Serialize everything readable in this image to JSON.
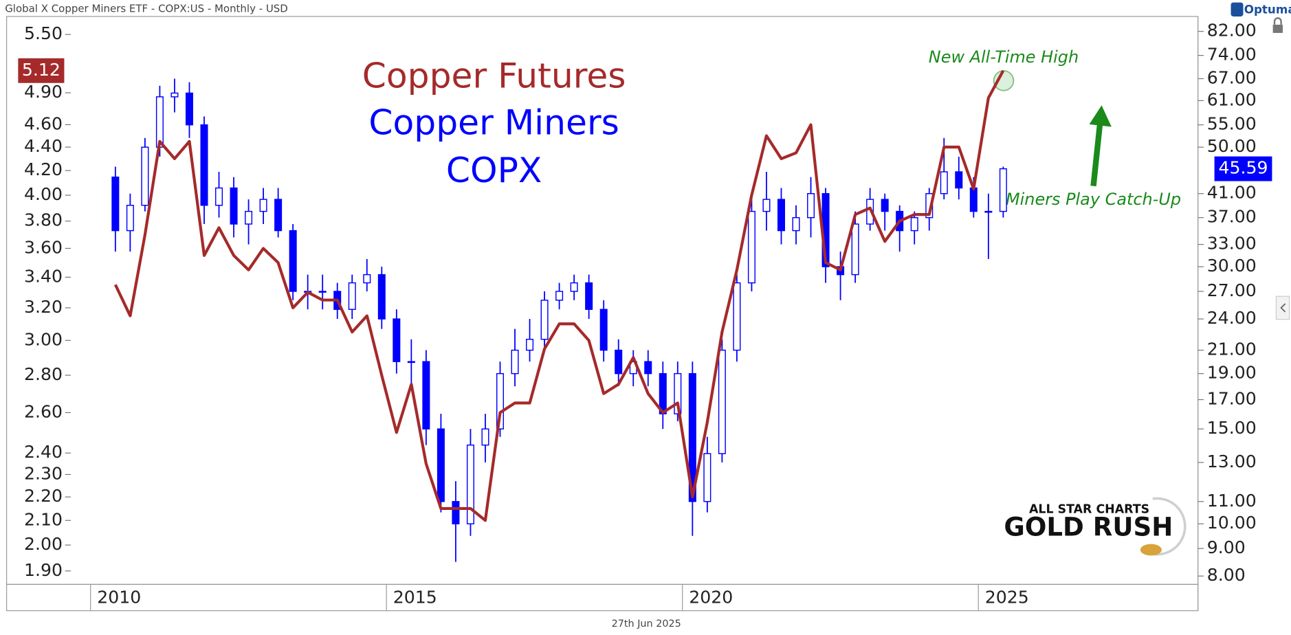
{
  "chart_data": {
    "type": "combo",
    "title": "Global X Copper Miners ETF - COPX:US - Monthly - USD",
    "date": "27th Jun 2025",
    "brand": "Optuma",
    "watermark": [
      "ALL STAR CHARTS",
      "GOLD RUSH"
    ],
    "annotations": [
      {
        "text": "New All-Time High",
        "color": "#1a8a1a"
      },
      {
        "text": "Miners Play Catch-Up",
        "color": "#1a8a1a"
      }
    ],
    "log_scale": true,
    "x": [
      2010.42,
      2010.67,
      2010.92,
      2011.17,
      2011.42,
      2011.67,
      2011.92,
      2012.17,
      2012.42,
      2012.67,
      2012.92,
      2013.17,
      2013.42,
      2013.67,
      2013.92,
      2014.17,
      2014.42,
      2014.67,
      2014.92,
      2015.17,
      2015.42,
      2015.67,
      2015.92,
      2016.17,
      2016.42,
      2016.67,
      2016.92,
      2017.17,
      2017.42,
      2017.67,
      2017.92,
      2018.17,
      2018.42,
      2018.67,
      2018.92,
      2019.17,
      2019.42,
      2019.67,
      2019.92,
      2020.17,
      2020.42,
      2020.67,
      2020.92,
      2021.17,
      2021.42,
      2021.67,
      2021.92,
      2022.17,
      2022.42,
      2022.67,
      2022.92,
      2023.17,
      2023.42,
      2023.67,
      2023.92,
      2024.17,
      2024.42,
      2024.67,
      2024.92,
      2025.17,
      2025.42
    ],
    "xlim": [
      2008.61,
      2028.71
    ],
    "xticks": [
      2010,
      2015,
      2020,
      2025
    ],
    "ylim": [
      1.85,
      5.7
    ],
    "yticks": [
      {
        "value": 1.9,
        "label": "1.90"
      },
      {
        "value": 2,
        "label": "2.00"
      },
      {
        "value": 2.1,
        "label": "2.10"
      },
      {
        "value": 2.2,
        "label": "2.20"
      },
      {
        "value": 2.3,
        "label": "2.30"
      },
      {
        "value": 2.4,
        "label": "2.40"
      },
      {
        "value": 2.6,
        "label": "2.60"
      },
      {
        "value": 2.8,
        "label": "2.80"
      },
      {
        "value": 3,
        "label": "3.00"
      },
      {
        "value": 3.2,
        "label": "3.20"
      },
      {
        "value": 3.4,
        "label": "3.40"
      },
      {
        "value": 3.6,
        "label": "3.60"
      },
      {
        "value": 3.8,
        "label": "3.80"
      },
      {
        "value": 4,
        "label": "4.00"
      },
      {
        "value": 4.2,
        "label": "4.20"
      },
      {
        "value": 4.4,
        "label": "4.40"
      },
      {
        "value": 4.6,
        "label": "4.60"
      },
      {
        "value": 4.9,
        "label": "4.90"
      },
      {
        "value": 5.5,
        "label": "5.50"
      }
    ],
    "y2lim": [
      7.72,
      87.4
    ],
    "y2ticks": [
      {
        "value": 8,
        "label": "8.00"
      },
      {
        "value": 9,
        "label": "9.00"
      },
      {
        "value": 10,
        "label": "10.00"
      },
      {
        "value": 11,
        "label": "11.00"
      },
      {
        "value": 13,
        "label": "13.00"
      },
      {
        "value": 15,
        "label": "15.00"
      },
      {
        "value": 17,
        "label": "17.00"
      },
      {
        "value": 19,
        "label": "19.00"
      },
      {
        "value": 21,
        "label": "21.00"
      },
      {
        "value": 24,
        "label": "24.00"
      },
      {
        "value": 27,
        "label": "27.00"
      },
      {
        "value": 30,
        "label": "30.00"
      },
      {
        "value": 33,
        "label": "33.00"
      },
      {
        "value": 37,
        "label": "37.00"
      },
      {
        "value": 41,
        "label": "41.00"
      },
      {
        "value": 50,
        "label": "50.00"
      },
      {
        "value": 55,
        "label": "55.00"
      },
      {
        "value": 61,
        "label": "61.00"
      },
      {
        "value": 67,
        "label": "67.00"
      },
      {
        "value": 74,
        "label": "74.00"
      },
      {
        "value": 82,
        "label": "82.00"
      }
    ],
    "series": [
      {
        "name": "Copper Futures",
        "type": "line",
        "axis": "y",
        "color": "#a52a2a",
        "values": [
          3.35,
          3.15,
          3.7,
          4.45,
          4.3,
          4.45,
          3.55,
          3.75,
          3.55,
          3.45,
          3.6,
          3.5,
          3.2,
          3.3,
          3.25,
          3.25,
          3.05,
          3.15,
          2.8,
          2.5,
          2.75,
          2.35,
          2.15,
          2.15,
          2.15,
          2.1,
          2.6,
          2.65,
          2.65,
          2.95,
          3.1,
          3.1,
          3.0,
          2.7,
          2.75,
          2.9,
          2.7,
          2.6,
          2.65,
          2.2,
          2.55,
          3.05,
          3.45,
          4.0,
          4.5,
          4.3,
          4.35,
          4.6,
          3.5,
          3.45,
          3.85,
          3.9,
          3.65,
          3.8,
          3.85,
          3.85,
          4.4,
          4.4,
          4.05,
          4.85,
          5.12
        ]
      },
      {
        "name": "Copper Miners",
        "ticker": "COPX",
        "type": "candlestick",
        "axis": "y2",
        "color": "#0000ff",
        "open": [
          44,
          35,
          39,
          50,
          62,
          63,
          55,
          39,
          42,
          36,
          38,
          40,
          35,
          27,
          27,
          27,
          25,
          28,
          29,
          24,
          20,
          20,
          15,
          11,
          10,
          14,
          15,
          19,
          21,
          22,
          26,
          27,
          28,
          25,
          21,
          19,
          20,
          19,
          16,
          19,
          11,
          13.5,
          21,
          28,
          38,
          40,
          35,
          37,
          41,
          30,
          29,
          36,
          40,
          38,
          35,
          37,
          41,
          45,
          42,
          38,
          38
        ],
        "high": [
          46,
          41,
          52,
          65,
          67,
          66,
          57,
          45,
          44,
          40,
          42,
          42,
          36,
          29,
          29,
          28,
          29,
          31,
          30,
          25,
          22,
          21,
          16,
          12,
          15,
          16,
          20,
          23,
          24,
          27,
          28,
          29,
          29,
          26,
          22,
          21,
          21,
          20,
          20,
          20,
          14.5,
          22,
          29,
          40,
          45,
          42,
          39,
          44,
          42,
          32,
          38,
          42,
          41,
          39,
          38,
          42,
          52,
          48,
          44,
          41,
          46
        ],
        "low": [
          32,
          32,
          38,
          48,
          58,
          52,
          36,
          37,
          34,
          33,
          36,
          34,
          26,
          25,
          25,
          24,
          24,
          27,
          23,
          19,
          18,
          14,
          10.5,
          8.5,
          9.5,
          13,
          14.5,
          18,
          20,
          21,
          25,
          26,
          24,
          20,
          18,
          18,
          18,
          15,
          15.5,
          9.5,
          10.5,
          13,
          20,
          27,
          35,
          33,
          33,
          34,
          28,
          26,
          28,
          35,
          35,
          32,
          33,
          35,
          40,
          40,
          37,
          31,
          37
        ],
        "close": [
          35,
          39,
          50,
          62,
          63,
          55,
          39,
          42,
          36,
          38,
          40,
          35,
          27,
          27,
          27,
          25,
          28,
          29,
          24,
          20,
          20,
          15,
          11,
          10,
          14,
          15,
          19,
          21,
          22,
          26,
          27,
          28,
          25,
          21,
          19,
          20,
          19,
          16,
          19,
          11,
          13.5,
          21,
          28,
          38,
          40,
          35,
          37,
          41,
          30,
          29,
          36,
          40,
          38,
          35,
          37,
          41,
          45,
          42,
          38,
          38,
          45.59
        ]
      }
    ]
  }
}
